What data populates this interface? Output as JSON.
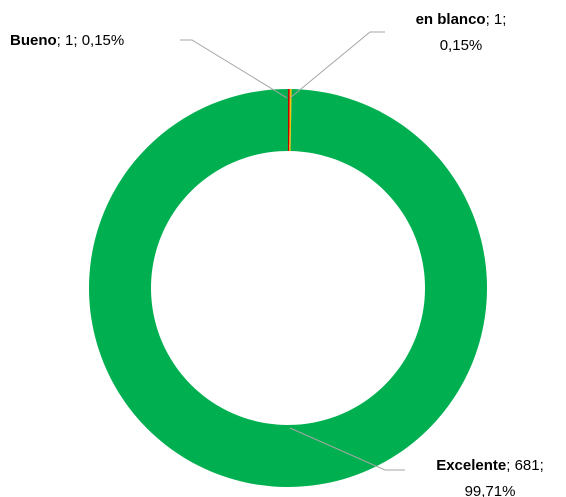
{
  "chart_data": {
    "type": "donut",
    "categories": [
      "en blanco",
      "Bueno",
      "Excelente"
    ],
    "values": [
      1,
      1,
      681
    ],
    "percent_labels": [
      "0,15%",
      "0,15%",
      "99,71%"
    ],
    "colors": [
      "#c00000",
      "#ffc000",
      "#00b050"
    ],
    "label_separator": "; "
  }
}
